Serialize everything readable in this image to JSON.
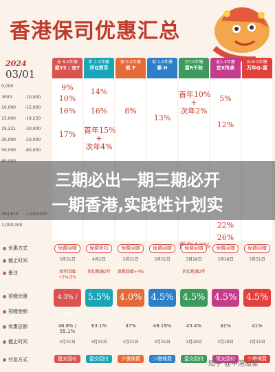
{
  "title": "香港保司优惠汇总",
  "date": {
    "year": "2024",
    "md": "03/01"
  },
  "columns": [
    {
      "name": "友 8-5年缴",
      "sub": "盈Y3 / 充Y",
      "color": "#d9534f"
    },
    {
      "name": "旷 1-5年缴",
      "sub": "环Q货币",
      "color": "#1aa5b8"
    },
    {
      "name": "保 0-5年缴",
      "sub": "凯 F",
      "color": "#e46a3a"
    },
    {
      "name": "宏 1-5年缴",
      "sub": "挚 H",
      "color": "#2c7fc8"
    },
    {
      "name": "万T-5年缴",
      "sub": "富R千秋",
      "color": "#3c9a5c"
    },
    {
      "name": "友1-5年缴",
      "sub": "宏X传承",
      "color": "#c43c8c"
    },
    {
      "name": "B-M 5年缴",
      "sub": "万年Q-富",
      "color": "#e2403a"
    }
  ],
  "premium_tiers": [
    "0,000",
    "3000",
    "10,000",
    "15,000",
    "19,231",
    "30,000",
    "50,000",
    "80,000",
    "",
    "",
    "",
    "",
    "384,615",
    "1,000,000"
  ],
  "premium_tiers_right": [
    "",
    "-10,000",
    "-15,000",
    "-19,230",
    "-30,000",
    "-50,000",
    "-80,000",
    "",
    "",
    "",
    "",
    "",
    "-1,000,000",
    ""
  ],
  "rates": {
    "c1": [
      "9%",
      "10%",
      "16%",
      "17%"
    ],
    "c2": [
      "14%",
      "16%",
      "首年15%\n+\n次年4%"
    ],
    "c3": [
      "8%"
    ],
    "c4": [
      "13%"
    ],
    "c5": [
      "首年10%\n+\n次年2%",
      "首年16%"
    ],
    "c6": [
      "5%",
      "12%",
      "22%",
      "26%"
    ],
    "c7": []
  },
  "overlay_lines": [
    "三期必出一期三期必开",
    "一期香港,实践性计划实"
  ],
  "bottom": {
    "labels": [
      "优惠方式",
      "截止时间",
      "备注",
      "预缴优惠",
      "预缴金额",
      "优惠总额",
      "截止时间",
      "付息方式"
    ],
    "offer_type": [
      "保费回赠",
      "保费折扣",
      "保费回赠",
      "保费回赠",
      "保费回赠",
      "保费回赠",
      "保费回赠"
    ],
    "deadline": [
      "3月31日",
      "4月2日",
      "3月31日",
      "3月31日",
      "3月28日",
      "3月28日",
      "3月31日"
    ],
    "note": [
      "首年回赠+2%/3%",
      "折扣期满2年",
      "保费回赠+4%",
      "",
      "折扣期满2年",
      "",
      ""
    ],
    "prepay_rate": [
      "4.3% / 5%",
      "5.5%",
      "4.0%",
      "4.5%",
      "4.5%",
      "4.5%",
      "4.5%"
    ],
    "total": [
      "46.8% / 55.1%",
      "63.1%",
      "37%",
      "49.19%",
      "45.4%",
      "41%",
      "41%"
    ],
    "deadline2": [
      "3月31日",
      "3月31日",
      "3月31日",
      "3月31日",
      "3月28日",
      "3月28日",
      "3月31日"
    ],
    "pay_method": [
      "趸交回付",
      "趸交回付",
      "少缴保费",
      "少缴保费",
      "趸交回付",
      "趸交回付",
      "少缴保费"
    ]
  },
  "watermark": "知乎 @中港激蒙"
}
